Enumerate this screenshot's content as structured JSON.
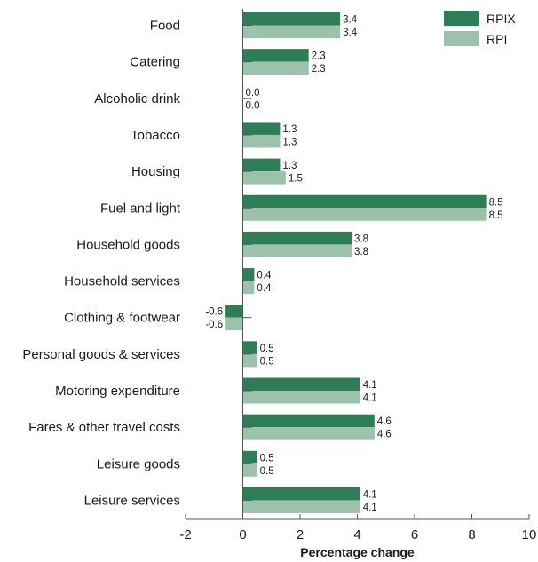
{
  "chart_data": {
    "type": "bar",
    "orientation": "horizontal",
    "categories": [
      "Food",
      "Catering",
      "Alcoholic drink",
      "Tobacco",
      "Housing",
      "Fuel and light",
      "Household goods",
      "Household services",
      "Clothing & footwear",
      "Personal goods & services",
      "Motoring expenditure",
      "Fares & other travel costs",
      "Leisure goods",
      "Leisure services"
    ],
    "series": [
      {
        "name": "RPIX",
        "color": "#2e7d54",
        "values": [
          3.4,
          2.3,
          0.0,
          1.3,
          1.3,
          8.5,
          3.8,
          0.4,
          -0.6,
          0.5,
          4.1,
          4.6,
          0.5,
          4.1
        ],
        "labels": [
          "3.4",
          "2.3",
          "0.0",
          "1.3",
          "1.3",
          "8.5",
          "3.8",
          "0.4",
          "-0.6",
          "0.5",
          "4.1",
          "4.6",
          "0.5",
          "4.1"
        ]
      },
      {
        "name": "RPI",
        "color": "#9cc2ab",
        "values": [
          3.4,
          2.3,
          0.0,
          1.3,
          1.5,
          8.5,
          3.8,
          0.4,
          -0.6,
          0.5,
          4.1,
          4.6,
          0.5,
          4.1
        ],
        "labels": [
          "3.4",
          "2.3",
          "0.0",
          "1.3",
          "1.5",
          "8.5",
          "3.8",
          "0.4",
          "-0.6",
          "0.5",
          "4.1",
          "4.6",
          "0.5",
          "4.1"
        ]
      }
    ],
    "xlabel": "Percentage change",
    "xlim": [
      -2,
      10
    ],
    "xticks": [
      -2,
      0,
      2,
      4,
      6,
      8,
      10
    ],
    "xtick_labels": [
      "-2",
      "0",
      "2",
      "4",
      "6",
      "8",
      "10"
    ],
    "grid": false,
    "legend_position": "top-right"
  }
}
